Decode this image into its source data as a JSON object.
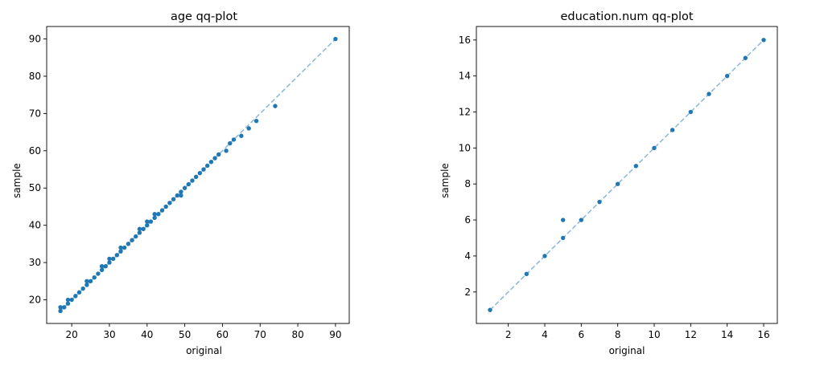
{
  "chart_data": [
    {
      "type": "scatter",
      "title": "age qq-plot",
      "xlabel": "original",
      "ylabel": "sample",
      "xlim": [
        13.35,
        93.65
      ],
      "ylim": [
        13.65,
        93.35
      ],
      "xticks": [
        20,
        30,
        40,
        50,
        60,
        70,
        80,
        90
      ],
      "yticks": [
        20,
        30,
        40,
        50,
        60,
        70,
        80,
        90
      ],
      "reference_line": {
        "x": [
          17,
          90
        ],
        "y": [
          17,
          90
        ],
        "style": "dashed"
      },
      "grid": false,
      "series": [
        {
          "x": [
            17,
            17,
            18,
            19,
            19,
            20,
            21,
            22,
            23,
            24,
            24,
            25,
            26,
            27,
            28,
            28,
            29,
            30,
            30,
            31,
            32,
            33,
            33,
            34,
            35,
            36,
            37,
            38,
            38,
            39,
            40,
            40,
            41,
            42,
            42,
            43,
            44,
            45,
            46,
            47,
            48,
            49,
            49,
            50,
            51,
            52,
            53,
            54,
            55,
            56,
            57,
            58,
            59,
            61,
            62,
            63,
            65,
            67,
            69,
            74,
            90
          ],
          "y": [
            17,
            18,
            18,
            19,
            20,
            20,
            21,
            22,
            23,
            24,
            25,
            25,
            26,
            27,
            28,
            29,
            29,
            30,
            31,
            31,
            32,
            33,
            34,
            34,
            35,
            36,
            37,
            38,
            39,
            39,
            40,
            41,
            41,
            42,
            43,
            43,
            44,
            45,
            46,
            47,
            48,
            48,
            49,
            50,
            51,
            52,
            53,
            54,
            55,
            56,
            57,
            58,
            59,
            60,
            62,
            63,
            64,
            66,
            68,
            72,
            90
          ]
        }
      ]
    },
    {
      "type": "scatter",
      "title": "education.num qq-plot",
      "xlabel": "original",
      "ylabel": "sample",
      "xlim": [
        0.25,
        16.75
      ],
      "ylim": [
        0.25,
        16.75
      ],
      "xticks": [
        2,
        4,
        6,
        8,
        10,
        12,
        14,
        16
      ],
      "yticks": [
        2,
        4,
        6,
        8,
        10,
        12,
        14,
        16
      ],
      "reference_line": {
        "x": [
          1,
          16
        ],
        "y": [
          1,
          16
        ],
        "style": "dashed"
      },
      "grid": false,
      "series": [
        {
          "x": [
            1,
            3,
            4,
            5,
            5,
            6,
            7,
            8,
            9,
            10,
            11,
            12,
            13,
            14,
            15,
            16
          ],
          "y": [
            1,
            3,
            4,
            5,
            6,
            6,
            7,
            8,
            9,
            10,
            11,
            12,
            13,
            14,
            15,
            16
          ]
        }
      ]
    }
  ],
  "colors": {
    "points": "#1f77b4",
    "reference_line": "#8fbbd9",
    "axes": "#000000"
  }
}
